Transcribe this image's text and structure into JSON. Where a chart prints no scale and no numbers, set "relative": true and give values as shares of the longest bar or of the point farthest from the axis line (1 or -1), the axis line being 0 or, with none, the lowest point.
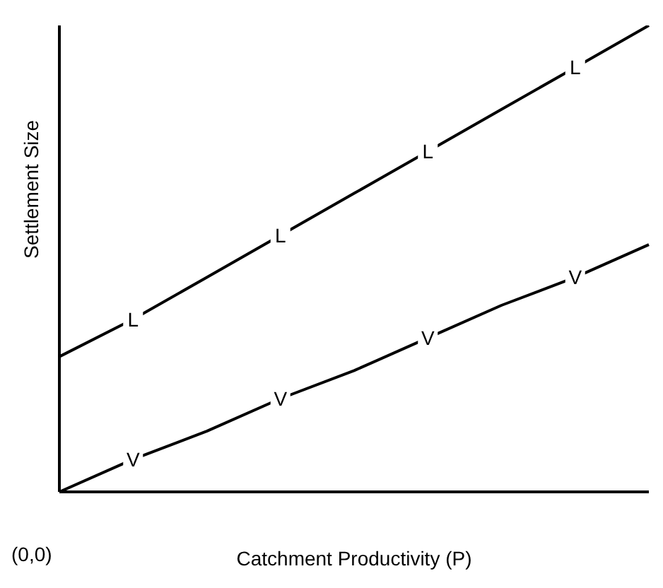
{
  "chart_data": {
    "type": "line",
    "relative": true,
    "xlabel": "Catchment Productivity   (P)",
    "ylabel": "Settlement Size",
    "annotations": [
      "(0,0)"
    ],
    "categories": [
      null,
      null,
      null,
      null,
      null,
      null,
      null,
      null,
      null
    ],
    "series": [
      {
        "name": "L",
        "color": "#000000",
        "values": [
          0.29,
          0.37,
          0.46,
          0.55,
          0.64,
          0.73,
          0.82,
          0.91,
          1
        ]
      },
      {
        "name": "V",
        "color": "#000000",
        "values": [
          0,
          0.07,
          0.13,
          0.2,
          0.26,
          0.33,
          0.4,
          0.46,
          0.53
        ]
      }
    ],
    "legend": false,
    "grid": false,
    "marker": "none",
    "line_style": "solid"
  }
}
